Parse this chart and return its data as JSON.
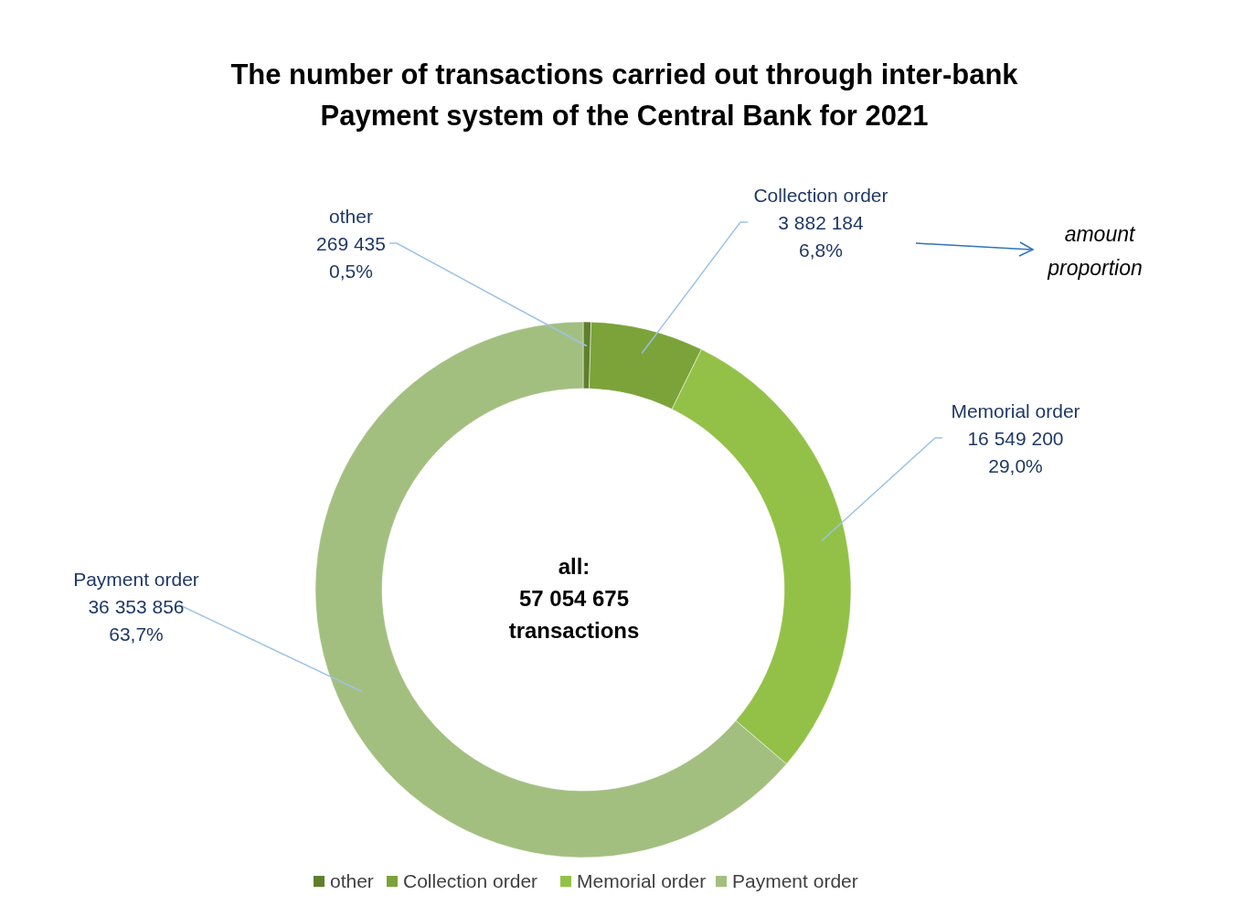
{
  "chart_data": {
    "type": "donut",
    "title": "The number of transactions carried out through inter-bank Payment system of the Central Bank for 2021",
    "categories": [
      "other",
      "Collection order",
      "Memorial order",
      "Payment order"
    ],
    "values": [
      269435,
      3882184,
      16549200,
      36353856
    ],
    "colors": [
      "#5f7f2c",
      "#7ba33a",
      "#93c147",
      "#a3bf80"
    ],
    "value_labels": [
      "269 435\n0,5%",
      "3 882 184\n6,8%",
      "16 549 200\n29,0%",
      "36 353 856\n63,7%"
    ],
    "annotations": [
      "all:\n57 054 675\ntransactions",
      "amount\nproportion"
    ],
    "legend": "bottom"
  }
}
